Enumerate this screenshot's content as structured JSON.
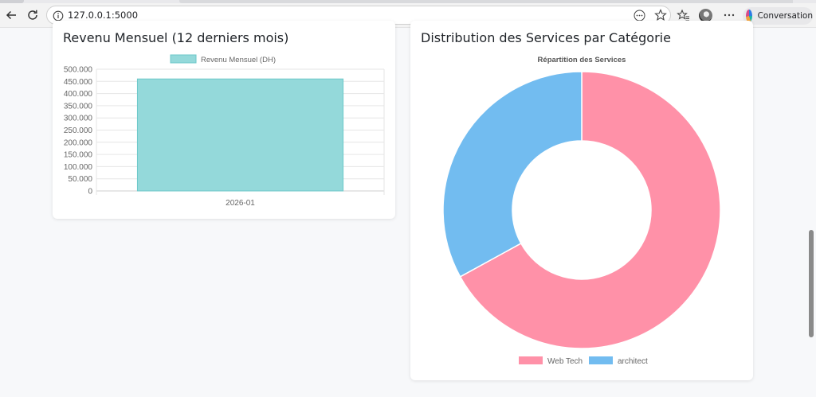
{
  "browser": {
    "url": "127.0.0.1:5000",
    "copilot_label": "Conversation"
  },
  "revenue_card": {
    "title": "Revenu Mensuel (12 derniers mois)"
  },
  "services_card": {
    "title": "Distribution des Services par Catégorie"
  },
  "colors": {
    "bar_fill": "#94d9da",
    "bar_border": "#6cc8c9",
    "web_tech": "#ff91a8",
    "architect": "#72bcf0"
  },
  "chart_data": [
    {
      "type": "bar",
      "categories": [
        "2026-01"
      ],
      "series": [
        {
          "name": "Revenu Mensuel (DH)",
          "values": [
            460000
          ]
        }
      ],
      "ylim": [
        0,
        500000
      ],
      "y_ticks": [
        "0",
        "50.000",
        "100.000",
        "150.000",
        "200.000",
        "250.000",
        "300.000",
        "350.000",
        "400.000",
        "450.000",
        "500.000"
      ],
      "legend": "top",
      "grid": true
    },
    {
      "type": "pie",
      "variant": "doughnut",
      "title": "Répartition des Services",
      "labels": [
        "Web Tech",
        "architect"
      ],
      "values": [
        67,
        33
      ],
      "legend": "bottom"
    }
  ]
}
